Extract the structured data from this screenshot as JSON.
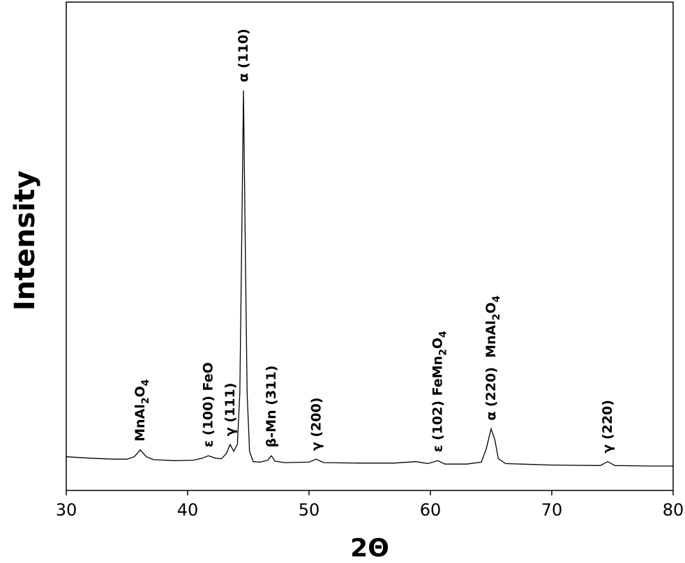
{
  "chart_data": {
    "type": "line",
    "xlabel": "2Θ",
    "ylabel": "Intensity",
    "xlim": [
      30,
      80
    ],
    "xticks": [
      30,
      40,
      50,
      60,
      70,
      80
    ],
    "ylim": [
      0,
      100
    ],
    "color": "#000000",
    "x": [
      30,
      32,
      34,
      35,
      35.6,
      36.1,
      36.6,
      37.2,
      39,
      40.5,
      41.2,
      41.7,
      42.3,
      42.8,
      43.2,
      43.5,
      43.8,
      44.1,
      44.3,
      44.45,
      44.6,
      44.75,
      44.9,
      45.1,
      45.4,
      46.0,
      46.6,
      46.9,
      47.2,
      48,
      50,
      50.6,
      51.2,
      54,
      57,
      58.8,
      59.8,
      60.6,
      61.2,
      63,
      64.2,
      64.6,
      65.0,
      65.3,
      65.6,
      66.2,
      70,
      74,
      74.6,
      75.2,
      78,
      80
    ],
    "values": [
      6.9,
      6.6,
      6.4,
      6.4,
      6.9,
      8.3,
      6.9,
      6.3,
      6.1,
      6.2,
      6.6,
      7.1,
      6.6,
      6.5,
      7.6,
      9.4,
      8.0,
      9.5,
      20,
      50,
      81.9,
      50,
      20,
      8,
      5.9,
      5.8,
      6.2,
      7.1,
      6.0,
      5.7,
      5.8,
      6.4,
      5.7,
      5.6,
      5.6,
      5.9,
      5.5,
      6.1,
      5.4,
      5.4,
      5.8,
      8.5,
      12.6,
      10.5,
      6.5,
      5.5,
      5.2,
      5.1,
      5.9,
      5.1,
      5.0,
      5.0
    ],
    "annotations": [
      {
        "x": 36.1,
        "parts": [
          {
            "text": "MnAl"
          },
          {
            "text": "2",
            "sub": true
          },
          {
            "text": "O"
          },
          {
            "text": "4",
            "sub": true
          }
        ]
      },
      {
        "x": 41.7,
        "parts": [
          {
            "text": "ε (100) FeO"
          }
        ]
      },
      {
        "x": 43.5,
        "parts": [
          {
            "text": "γ (111)"
          }
        ]
      },
      {
        "x": 44.6,
        "parts": [
          {
            "text": "α (110)"
          }
        ]
      },
      {
        "x": 46.9,
        "parts": [
          {
            "text": "β-Mn (311)"
          }
        ]
      },
      {
        "x": 50.6,
        "parts": [
          {
            "text": "γ (200)"
          }
        ]
      },
      {
        "x": 60.6,
        "parts": [
          {
            "text": "ε (102) FeMn"
          },
          {
            "text": "2",
            "sub": true
          },
          {
            "text": "O"
          },
          {
            "text": "4",
            "sub": true
          }
        ]
      },
      {
        "x": 65.0,
        "parts": [
          {
            "text": "α (220)  MnAl"
          },
          {
            "text": "2",
            "sub": true
          },
          {
            "text": "O"
          },
          {
            "text": "4",
            "sub": true
          }
        ]
      },
      {
        "x": 74.6,
        "parts": [
          {
            "text": "γ (220)"
          }
        ]
      }
    ]
  }
}
